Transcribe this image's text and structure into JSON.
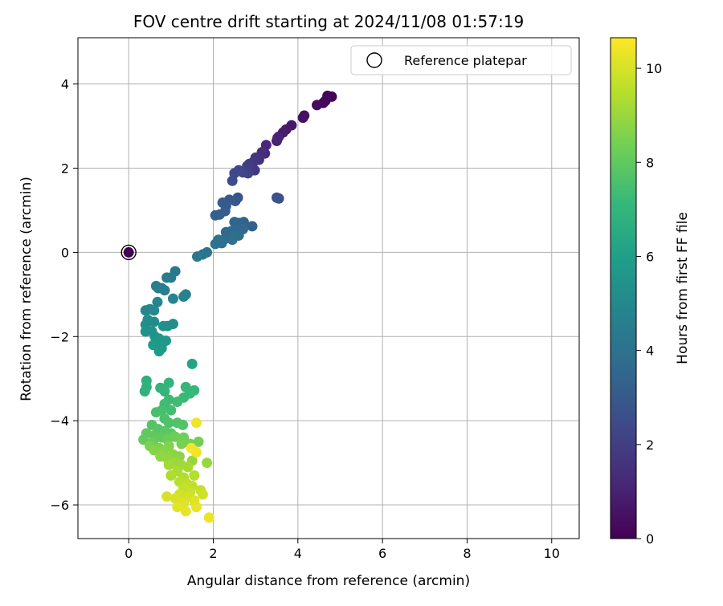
{
  "chart_data": {
    "type": "scatter",
    "title": "FOV centre drift starting at 2024/11/08 01:57:19",
    "xlabel": "Angular distance from reference (arcmin)",
    "ylabel": "Rotation from reference (arcmin)",
    "xlim": [
      -1.2,
      10.65
    ],
    "ylim": [
      -6.8,
      5.1
    ],
    "xticks": [
      0,
      2,
      4,
      6,
      8,
      10
    ],
    "yticks": [
      -6,
      -4,
      -2,
      0,
      2,
      4
    ],
    "xtick_labels": [
      "0",
      "2",
      "4",
      "6",
      "8",
      "10"
    ],
    "ytick_labels": [
      "−6",
      "−4",
      "−2",
      "0",
      "2",
      "4"
    ],
    "grid": true,
    "legend": {
      "position": "top-right",
      "entries": [
        {
          "label": "Reference platepar",
          "marker": "open-circle"
        }
      ]
    },
    "reference_point": {
      "x": 0,
      "y": 0
    },
    "colorbar": {
      "label": "Hours from first FF file",
      "range": [
        0,
        10.65
      ],
      "ticks": [
        0,
        2,
        4,
        6,
        8,
        10
      ],
      "tick_labels": [
        "0",
        "2",
        "4",
        "6",
        "8",
        "10"
      ],
      "colormap": "viridis"
    },
    "colormap_stops": [
      "#440154",
      "#482878",
      "#3e4989",
      "#31688e",
      "#26828e",
      "#1f9e89",
      "#35b779",
      "#6ece58",
      "#b5de2b",
      "#fde725"
    ],
    "series": [
      {
        "points": [
          [
            0.0,
            0.0,
            0.0
          ],
          [
            4.8,
            3.7,
            0.1
          ],
          [
            4.7,
            3.72,
            0.15
          ],
          [
            4.65,
            3.6,
            0.2
          ],
          [
            4.6,
            3.55,
            0.25
          ],
          [
            4.45,
            3.5,
            0.3
          ],
          [
            4.15,
            3.25,
            0.45
          ],
          [
            4.12,
            3.2,
            0.5
          ],
          [
            3.85,
            3.02,
            0.7
          ],
          [
            3.72,
            2.92,
            0.8
          ],
          [
            3.65,
            2.85,
            0.85
          ],
          [
            3.55,
            2.75,
            0.95
          ],
          [
            3.5,
            2.65,
            1.0
          ],
          [
            3.52,
            2.72,
            1.05
          ],
          [
            3.25,
            2.55,
            1.2
          ],
          [
            3.22,
            2.35,
            1.3
          ],
          [
            3.15,
            2.38,
            1.4
          ],
          [
            3.08,
            2.2,
            1.5
          ],
          [
            3.0,
            2.25,
            1.6
          ],
          [
            2.95,
            2.15,
            1.7
          ],
          [
            2.98,
            1.95,
            1.8
          ],
          [
            2.85,
            2.1,
            1.9
          ],
          [
            2.8,
            2.05,
            2.0
          ],
          [
            2.82,
            1.88,
            2.1
          ],
          [
            2.7,
            1.9,
            2.2
          ],
          [
            2.6,
            1.95,
            2.3
          ],
          [
            2.5,
            1.88,
            2.4
          ],
          [
            2.45,
            1.7,
            2.5
          ],
          [
            3.55,
            1.28,
            2.6
          ],
          [
            3.5,
            1.3,
            2.7
          ],
          [
            2.58,
            1.3,
            2.8
          ],
          [
            2.52,
            1.22,
            2.9
          ],
          [
            2.38,
            1.25,
            3.0
          ],
          [
            2.3,
            1.1,
            3.05
          ],
          [
            2.22,
            1.18,
            3.1
          ],
          [
            2.28,
            0.98,
            3.15
          ],
          [
            2.15,
            0.9,
            3.2
          ],
          [
            2.05,
            0.88,
            3.25
          ],
          [
            2.92,
            0.62,
            3.3
          ],
          [
            2.72,
            0.72,
            3.35
          ],
          [
            2.6,
            0.7,
            3.4
          ],
          [
            2.5,
            0.72,
            3.45
          ],
          [
            2.7,
            0.55,
            3.5
          ],
          [
            2.55,
            0.55,
            3.55
          ],
          [
            2.42,
            0.5,
            3.6
          ],
          [
            2.35,
            0.42,
            3.65
          ],
          [
            2.3,
            0.48,
            3.7
          ],
          [
            2.25,
            0.3,
            3.75
          ],
          [
            2.6,
            0.4,
            3.8
          ],
          [
            2.5,
            0.38,
            3.85
          ],
          [
            2.45,
            0.3,
            3.9
          ],
          [
            2.2,
            0.22,
            3.95
          ],
          [
            2.12,
            0.3,
            4.0
          ],
          [
            2.05,
            0.2,
            4.05
          ],
          [
            1.85,
            0.0,
            4.1
          ],
          [
            1.75,
            -0.05,
            4.15
          ],
          [
            1.62,
            -0.1,
            4.2
          ],
          [
            1.1,
            -0.45,
            4.3
          ],
          [
            1.0,
            -0.6,
            4.35
          ],
          [
            0.9,
            -0.6,
            4.4
          ],
          [
            0.78,
            -0.85,
            4.45
          ],
          [
            0.7,
            -0.85,
            4.5
          ],
          [
            0.65,
            -0.8,
            4.55
          ],
          [
            0.85,
            -0.9,
            4.6
          ],
          [
            1.35,
            -1.0,
            4.7
          ],
          [
            1.3,
            -1.05,
            4.75
          ],
          [
            1.05,
            -1.1,
            4.8
          ],
          [
            0.68,
            -1.18,
            4.85
          ],
          [
            0.5,
            -1.35,
            4.9
          ],
          [
            0.4,
            -1.38,
            4.95
          ],
          [
            0.6,
            -1.38,
            5.0
          ],
          [
            0.6,
            -1.65,
            5.1
          ],
          [
            0.45,
            -1.6,
            5.15
          ],
          [
            0.4,
            -1.72,
            5.2
          ],
          [
            1.05,
            -1.7,
            5.25
          ],
          [
            0.92,
            -1.75,
            5.3
          ],
          [
            0.82,
            -1.75,
            5.35
          ],
          [
            0.55,
            -1.88,
            5.4
          ],
          [
            0.4,
            -1.88,
            5.45
          ],
          [
            0.62,
            -2.0,
            5.5
          ],
          [
            0.72,
            -2.05,
            5.6
          ],
          [
            0.88,
            -2.1,
            5.65
          ],
          [
            0.8,
            -2.15,
            5.7
          ],
          [
            0.58,
            -2.2,
            5.75
          ],
          [
            0.78,
            -2.28,
            5.8
          ],
          [
            0.72,
            -2.35,
            5.85
          ],
          [
            1.5,
            -2.65,
            6.2
          ],
          [
            0.42,
            -3.05,
            6.7
          ],
          [
            0.38,
            -3.3,
            6.8
          ],
          [
            0.42,
            -3.2,
            6.85
          ],
          [
            0.75,
            -3.22,
            6.9
          ],
          [
            0.95,
            -3.1,
            6.95
          ],
          [
            0.85,
            -3.3,
            7.0
          ],
          [
            1.35,
            -3.2,
            7.05
          ],
          [
            1.55,
            -3.28,
            7.1
          ],
          [
            1.45,
            -3.35,
            7.15
          ],
          [
            1.3,
            -3.45,
            7.2
          ],
          [
            0.95,
            -3.5,
            7.25
          ],
          [
            1.15,
            -3.55,
            7.3
          ],
          [
            0.85,
            -3.6,
            7.35
          ],
          [
            1.0,
            -3.75,
            7.4
          ],
          [
            0.78,
            -3.75,
            7.45
          ],
          [
            0.65,
            -3.8,
            7.5
          ],
          [
            0.85,
            -3.95,
            7.55
          ],
          [
            0.95,
            -4.05,
            7.6
          ],
          [
            1.15,
            -4.05,
            7.65
          ],
          [
            1.28,
            -4.1,
            7.7
          ],
          [
            0.55,
            -4.1,
            7.75
          ],
          [
            0.7,
            -4.2,
            7.8
          ],
          [
            0.85,
            -4.25,
            7.85
          ],
          [
            1.0,
            -4.3,
            7.9
          ],
          [
            0.42,
            -4.3,
            7.95
          ],
          [
            0.6,
            -4.35,
            8.0
          ],
          [
            0.78,
            -4.4,
            8.05
          ],
          [
            0.35,
            -4.45,
            8.1
          ],
          [
            0.58,
            -4.5,
            8.15
          ],
          [
            0.92,
            -4.45,
            8.2
          ],
          [
            1.1,
            -4.38,
            8.25
          ],
          [
            1.3,
            -4.4,
            8.3
          ],
          [
            1.65,
            -4.5,
            8.35
          ],
          [
            1.45,
            -4.55,
            8.4
          ],
          [
            1.25,
            -4.55,
            8.45
          ],
          [
            0.5,
            -4.6,
            8.5
          ],
          [
            0.72,
            -4.65,
            8.55
          ],
          [
            0.95,
            -4.6,
            8.6
          ],
          [
            0.6,
            -4.7,
            8.65
          ],
          [
            0.82,
            -4.75,
            8.7
          ],
          [
            1.05,
            -4.8,
            8.75
          ],
          [
            1.2,
            -4.85,
            8.8
          ],
          [
            0.75,
            -4.85,
            8.85
          ],
          [
            0.92,
            -4.9,
            8.9
          ],
          [
            1.5,
            -4.95,
            8.95
          ],
          [
            1.85,
            -5.0,
            9.0
          ],
          [
            1.1,
            -5.0,
            9.05
          ],
          [
            1.25,
            -5.05,
            9.1
          ],
          [
            0.95,
            -5.05,
            9.15
          ],
          [
            1.4,
            -5.1,
            9.2
          ],
          [
            1.15,
            -5.2,
            9.3
          ],
          [
            1.0,
            -5.3,
            9.35
          ],
          [
            1.3,
            -5.35,
            9.4
          ],
          [
            1.55,
            -5.3,
            9.45
          ],
          [
            1.2,
            -5.45,
            9.5
          ],
          [
            1.38,
            -5.5,
            9.6
          ],
          [
            1.5,
            -5.55,
            9.65
          ],
          [
            1.3,
            -5.6,
            9.7
          ],
          [
            1.7,
            -5.65,
            9.75
          ],
          [
            1.45,
            -5.7,
            9.8
          ],
          [
            1.75,
            -5.75,
            9.85
          ],
          [
            1.2,
            -5.75,
            9.9
          ],
          [
            1.4,
            -5.8,
            9.95
          ],
          [
            0.9,
            -5.8,
            10.0
          ],
          [
            1.1,
            -5.85,
            10.05
          ],
          [
            1.55,
            -5.9,
            10.1
          ],
          [
            1.3,
            -5.95,
            10.15
          ],
          [
            1.15,
            -6.05,
            10.2
          ],
          [
            1.6,
            -6.05,
            10.25
          ],
          [
            1.35,
            -6.15,
            10.3
          ],
          [
            1.9,
            -6.3,
            10.35
          ],
          [
            1.6,
            -4.05,
            10.4
          ],
          [
            1.6,
            -4.75,
            10.45
          ],
          [
            1.48,
            -4.65,
            10.5
          ]
        ]
      }
    ]
  }
}
